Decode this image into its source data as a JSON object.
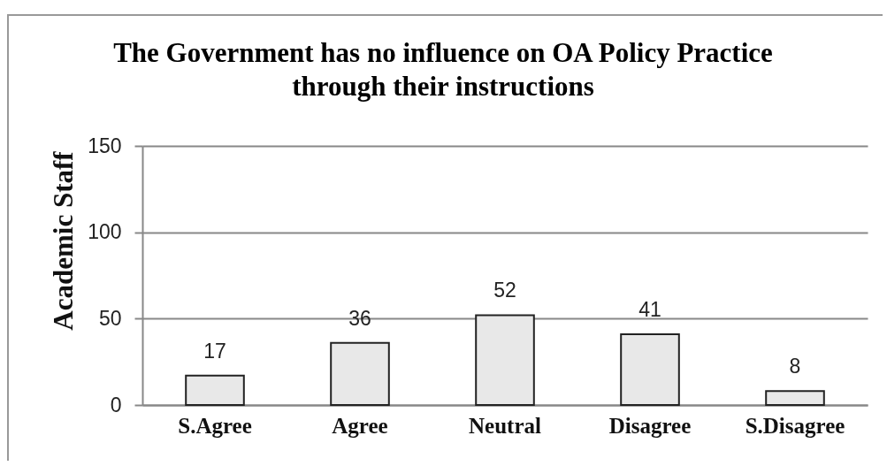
{
  "chart_data": {
    "type": "bar",
    "title": "The Government has no influence on OA Policy Practice through their instructions",
    "ylabel": "Academic Staff",
    "categories": [
      "S.Agree",
      "Agree",
      "Neutral",
      "Disagree",
      "S.Disagree"
    ],
    "values": [
      17,
      36,
      52,
      41,
      8
    ],
    "color": "#e8e8e8",
    "ylim": [
      0,
      150
    ],
    "yticks": [
      0,
      50,
      100,
      150
    ],
    "grid": "y",
    "data_labels": true
  }
}
